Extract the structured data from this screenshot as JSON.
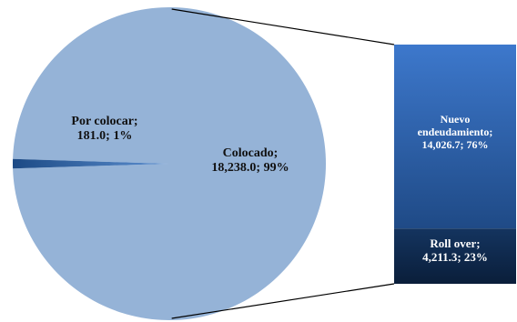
{
  "chart_data": {
    "type": "bar-of-pie",
    "pie": [
      {
        "label": "Colocado",
        "value": 18238.0,
        "percent": "99%",
        "display_value": "18,238.0",
        "color": "#95B3D7"
      },
      {
        "label": "Por colocar",
        "value": 181.0,
        "percent": "1%",
        "display_value": "181.0",
        "color": "#1F5497"
      }
    ],
    "bar": [
      {
        "label": "Nuevo endeudamiento",
        "value": 14026.7,
        "percent": "76%",
        "display_value": "14,026.7",
        "color": "#2F62A8"
      },
      {
        "label": "Roll over",
        "value": 4211.3,
        "percent": "23%",
        "display_value": "4,211.3",
        "color": "#0F2A4E"
      }
    ],
    "data_labels": {
      "placed": "Colocado;\n18,238.0; 99%",
      "pending": "Por colocar;\n181.0; 1%",
      "new_debt": "Nuevo\nendeudamiento;\n14,026.7; 76%",
      "roll_over": "Roll over;\n4,211.3; 23%"
    }
  }
}
